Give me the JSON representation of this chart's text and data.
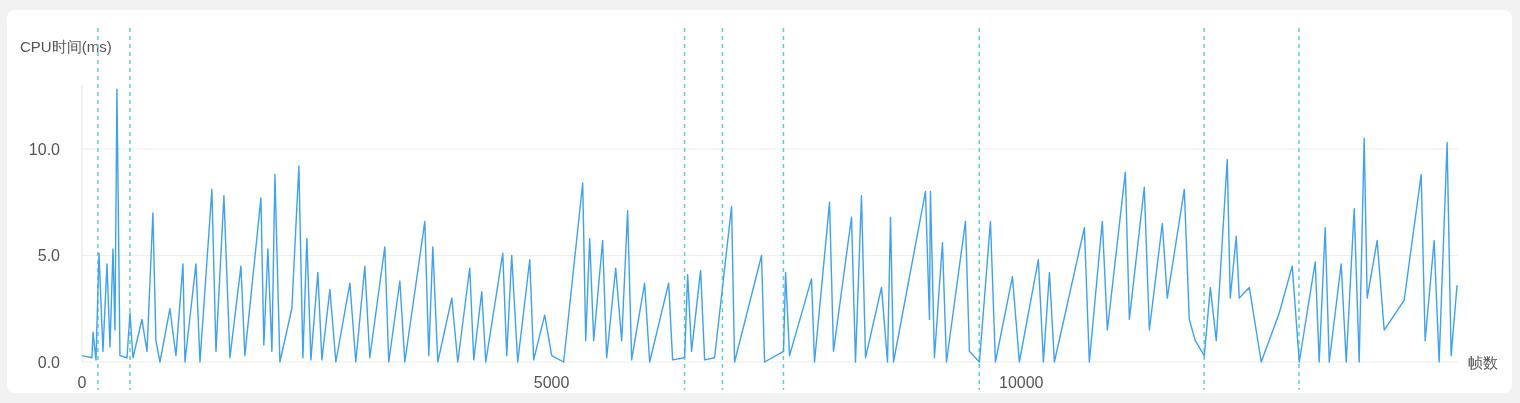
{
  "chart_data": {
    "type": "line",
    "ylabel": "CPU时间(ms)",
    "xlabel": "帧数",
    "xlim": [
      0,
      14650
    ],
    "ylim": [
      0,
      13
    ],
    "xticks": [
      0,
      5000,
      10000
    ],
    "yticks": [
      {
        "value": 0,
        "label": "0.0"
      },
      {
        "value": 5,
        "label": "5.0"
      },
      {
        "value": 10,
        "label": "10.0"
      }
    ],
    "grid": "y",
    "x": [
      0,
      106,
      117,
      149,
      181,
      223,
      266,
      298,
      330,
      351,
      372,
      404,
      479,
      511,
      543,
      638,
      692,
      755,
      787,
      830,
      936,
      1000,
      1075,
      1096,
      1213,
      1256,
      1383,
      1426,
      1511,
      1575,
      1692,
      1734,
      1905,
      1936,
      1979,
      2022,
      2054,
      2107,
      2234,
      2309,
      2352,
      2394,
      2437,
      2511,
      2554,
      2639,
      2703,
      2852,
      2915,
      3011,
      3064,
      3224,
      3266,
      3384,
      3437,
      3650,
      3692,
      3735,
      3788,
      3937,
      4001,
      4128,
      4171,
      4256,
      4299,
      4480,
      4522,
      4575,
      4639,
      4767,
      4809,
      4926,
      5001,
      5128,
      5331,
      5363,
      5405,
      5448,
      5543,
      5586,
      5682,
      5746,
      5809,
      5852,
      5990,
      6044,
      6246,
      6288,
      6416,
      6448,
      6490,
      6586,
      6629,
      6735,
      6916,
      6948,
      7235,
      7267,
      7469,
      7491,
      7533,
      7767,
      7799,
      7959,
      8001,
      8193,
      8235,
      8299,
      8342,
      8512,
      8576,
      8608,
      8640,
      8980,
      9023,
      9033,
      9076,
      9161,
      9204,
      9406,
      9448,
      9555,
      9672,
      9725,
      9906,
      9980,
      10182,
      10236,
      10300,
      10353,
      10672,
      10725,
      10863,
      10917,
      11108,
      11151,
      11310,
      11364,
      11502,
      11555,
      11736,
      11789,
      11853,
      11949,
      12013,
      12076,
      12193,
      12225,
      12289,
      12321,
      12428,
      12555,
      12747,
      12885,
      12960,
      13130,
      13172,
      13236,
      13279,
      13406,
      13460,
      13545,
      13598,
      13651,
      13683,
      13789,
      13864,
      14077,
      14258,
      14300,
      14396,
      14449,
      14534,
      14577,
      14640
    ],
    "series": [
      {
        "color": "#3ea2f0",
        "values": [
          0.3,
          0.2,
          1.4,
          0.1,
          5.1,
          0.5,
          4.6,
          0.7,
          5.3,
          1.5,
          12.8,
          0.3,
          0.2,
          2.3,
          0.2,
          2.0,
          0.5,
          7.0,
          1.0,
          0.0,
          2.5,
          0.3,
          4.6,
          0.0,
          4.6,
          0.0,
          8.1,
          0.5,
          7.8,
          0.2,
          4.5,
          0.3,
          7.7,
          0.8,
          5.3,
          0.5,
          8.8,
          0.0,
          2.5,
          9.2,
          0.2,
          5.8,
          0.1,
          4.2,
          0.1,
          3.4,
          0.0,
          3.7,
          0.0,
          4.5,
          0.2,
          5.4,
          0.0,
          3.8,
          0.0,
          6.6,
          0.3,
          5.4,
          0.0,
          3.0,
          0.0,
          4.4,
          0.1,
          3.3,
          0.0,
          5.1,
          0.3,
          5.0,
          0.0,
          4.8,
          0.1,
          2.2,
          0.3,
          0.0,
          8.4,
          1.0,
          5.8,
          1.0,
          5.7,
          0.2,
          4.4,
          1.0,
          7.1,
          0.1,
          3.7,
          0.0,
          3.7,
          0.1,
          0.2,
          4.1,
          0.5,
          4.3,
          0.1,
          0.2,
          7.3,
          0.0,
          5.0,
          0.0,
          0.5,
          4.2,
          0.3,
          3.9,
          0.0,
          7.5,
          0.5,
          6.8,
          0.0,
          7.8,
          0.2,
          3.5,
          0.0,
          6.8,
          0.0,
          8.0,
          2.0,
          8.0,
          0.2,
          5.6,
          0.0,
          6.6,
          0.5,
          0.0,
          6.6,
          0.0,
          4.0,
          0.0,
          4.8,
          0.0,
          4.2,
          0.0,
          6.3,
          0.0,
          6.6,
          1.5,
          8.9,
          2.0,
          8.2,
          1.5,
          6.5,
          3.0,
          8.1,
          2.0,
          1.0,
          0.3,
          3.5,
          1.0,
          9.5,
          3.0,
          5.9,
          3.0,
          3.5,
          0.0,
          2.3,
          4.5,
          0.0,
          4.7,
          0.0,
          6.3,
          0.0,
          4.6,
          0.0,
          7.2,
          0.0,
          10.5,
          3.0,
          5.7,
          1.5,
          2.9,
          8.8,
          1.0,
          5.7,
          0.0,
          10.3,
          0.3,
          3.6
        ]
      }
    ],
    "ref_lines": [
      {
        "axis": "x",
        "value": 170,
        "color": "#5cd3c6",
        "line_style": "dashed"
      },
      {
        "axis": "x",
        "value": 511,
        "color": "#5cd3c6",
        "line_style": "dashed"
      },
      {
        "axis": "x",
        "value": 6415,
        "color": "#5cd3c6",
        "line_style": "dashed"
      },
      {
        "axis": "x",
        "value": 6819,
        "color": "#5cd3c6",
        "line_style": "dashed"
      },
      {
        "axis": "x",
        "value": 7468,
        "color": "#5cd3c6",
        "line_style": "dashed"
      },
      {
        "axis": "x",
        "value": 9553,
        "color": "#5cd3c6",
        "line_style": "dashed"
      },
      {
        "axis": "x",
        "value": 11947,
        "color": "#5cd3c6",
        "line_style": "dashed"
      },
      {
        "axis": "x",
        "value": 12957,
        "color": "#5cd3c6",
        "line_style": "dashed"
      }
    ]
  }
}
